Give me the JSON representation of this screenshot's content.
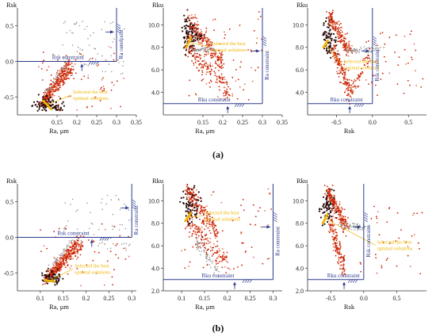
{
  "figure": {
    "panel_labels": [
      "(a)",
      "(b)"
    ],
    "colors": {
      "scatter_red": "#cc2200",
      "scatter_dark": "#2a0a0a",
      "scatter_grey": "#999999",
      "selection_yellow": "#f0b400",
      "constraint_blue": "#2c3a8c",
      "axis": "#333333"
    }
  },
  "chart_data": [
    {
      "id": "a1",
      "row": "a",
      "type": "scatter",
      "ylabel": "Rsk",
      "xlabel": "Ra, μm",
      "xlim": [
        0.05,
        0.35
      ],
      "ylim": [
        -0.75,
        0.75
      ],
      "xticks": [
        "0.15",
        "0.2",
        "0.25",
        "0.3",
        "0.35"
      ],
      "xtick_values": [
        0.15,
        0.2,
        0.25,
        0.3,
        0.35
      ],
      "yticks": [
        "0.5",
        "0.0",
        "-0.5"
      ],
      "ytick_values": [
        0.5,
        0.0,
        -0.5
      ],
      "constraints": [
        {
          "label": "Rsk constraint",
          "orientation": "horizontal",
          "value": 0.0,
          "x_end": 0.3
        },
        {
          "label": "Ra constraint",
          "orientation": "vertical",
          "value": 0.3,
          "y_end": 0.0
        }
      ],
      "annotation": {
        "text": [
          "Selected the best",
          "optimal solutions"
        ],
        "x": 0.19,
        "y": -0.45
      },
      "clusters": [
        {
          "kind": "band",
          "from": [
            0.11,
            -0.6
          ],
          "to": [
            0.18,
            -0.02
          ],
          "spread": 0.035,
          "n": 210
        },
        {
          "kind": "band",
          "from": [
            0.12,
            -0.55
          ],
          "to": [
            0.19,
            -0.1
          ],
          "spread": 0.04,
          "n": 150
        },
        {
          "kind": "blob",
          "center": [
            0.12,
            -0.6
          ],
          "spread": [
            0.012,
            0.05
          ],
          "n": 70,
          "color": "dark"
        },
        {
          "kind": "blob",
          "center": [
            0.15,
            -0.63
          ],
          "spread": [
            0.008,
            0.03
          ],
          "n": 25,
          "color": "dark"
        },
        {
          "kind": "band",
          "from": [
            0.12,
            -0.45
          ],
          "to": [
            0.17,
            -0.05
          ],
          "spread": 0.006,
          "n": 40,
          "color": "grey"
        },
        {
          "kind": "scatter",
          "xrange": [
            0.16,
            0.32
          ],
          "yrange": [
            -0.2,
            0.6
          ],
          "n": 70,
          "color": "grey"
        },
        {
          "kind": "scatter",
          "xrange": [
            0.1,
            0.32
          ],
          "yrange": [
            -0.7,
            0.2
          ],
          "n": 60
        }
      ],
      "selected": {
        "from": [
          0.115,
          -0.55
        ],
        "to": [
          0.135,
          -0.67
        ],
        "n": 12
      }
    },
    {
      "id": "a2",
      "row": "a",
      "type": "scatter",
      "ylabel": "Rku",
      "xlabel": "Ra, μm",
      "xlim": [
        0.05,
        0.35
      ],
      "ylim": [
        2.0,
        11.5
      ],
      "xticks": [
        "0.15",
        "0.2",
        "0.25",
        "0.3",
        "0.35"
      ],
      "xtick_values": [
        0.15,
        0.2,
        0.25,
        0.3,
        0.35
      ],
      "yticks": [
        "10.0",
        "8.0",
        "6.0",
        "4.0"
      ],
      "ytick_values": [
        10,
        8,
        6,
        4
      ],
      "constraints": [
        {
          "label": "Rku constraint",
          "orientation": "horizontal",
          "value": 3.0,
          "x_end": 0.3
        },
        {
          "label": "Ra constraint",
          "orientation": "vertical",
          "value": 0.3,
          "y_end": 3.0
        }
      ],
      "annotation": {
        "text": [
          "Selected the best",
          "optimal solutions"
        ],
        "x": 0.17,
        "y": 8.2
      },
      "clusters": [
        {
          "kind": "blob",
          "center": [
            0.115,
            9.0
          ],
          "spread": [
            0.01,
            0.9
          ],
          "n": 90,
          "color": "dark"
        },
        {
          "kind": "blob",
          "center": [
            0.14,
            9.0
          ],
          "spread": [
            0.006,
            0.3
          ],
          "n": 25,
          "color": "dark"
        },
        {
          "kind": "band",
          "from": [
            0.11,
            10.5
          ],
          "to": [
            0.2,
            6.5
          ],
          "spread": 0.4,
          "n": 190
        },
        {
          "kind": "band",
          "from": [
            0.11,
            8.0
          ],
          "to": [
            0.22,
            4.0
          ],
          "spread": 0.5,
          "n": 160
        },
        {
          "kind": "band",
          "from": [
            0.12,
            7.8
          ],
          "to": [
            0.18,
            7.8
          ],
          "spread": 0.1,
          "n": 60,
          "color": "grey"
        },
        {
          "kind": "scatter",
          "xrange": [
            0.1,
            0.3
          ],
          "yrange": [
            3.3,
            11.2
          ],
          "n": 70
        }
      ],
      "selected": {
        "from": [
          0.108,
          8.0
        ],
        "to": [
          0.12,
          8.9
        ],
        "n": 10
      }
    },
    {
      "id": "a3",
      "row": "a",
      "type": "scatter",
      "ylabel": "Rku",
      "xlabel": "Rsk",
      "xlim": [
        -0.9,
        0.75
      ],
      "ylim": [
        2.0,
        11.5
      ],
      "xticks": [
        "-0.5",
        "0.0",
        "0.5"
      ],
      "xtick_values": [
        -0.5,
        0.0,
        0.5
      ],
      "yticks": [
        "10.0",
        "8.0",
        "6.0",
        "4.0"
      ],
      "ytick_values": [
        10,
        8,
        6,
        4
      ],
      "constraints": [
        {
          "label": "Rku constraint",
          "orientation": "horizontal",
          "value": 3.0,
          "x_end": 0.0
        },
        {
          "label": "Rsk constraint",
          "orientation": "vertical",
          "value": 0.0,
          "y_end": 3.0
        }
      ],
      "annotation": {
        "text": [
          "Selected the best",
          "optimal solutions"
        ],
        "x": -0.4,
        "y": 6.6
      },
      "clusters": [
        {
          "kind": "blob",
          "center": [
            -0.6,
            8.8
          ],
          "spread": [
            0.05,
            0.8
          ],
          "n": 80,
          "color": "dark"
        },
        {
          "kind": "band",
          "from": [
            -0.6,
            10.8
          ],
          "to": [
            -0.3,
            7.5
          ],
          "spread": 0.35,
          "n": 200
        },
        {
          "kind": "band",
          "from": [
            -0.55,
            8.0
          ],
          "to": [
            -0.3,
            3.8
          ],
          "spread": 0.45,
          "n": 160
        },
        {
          "kind": "band",
          "from": [
            -0.3,
            3.8
          ],
          "to": [
            -0.05,
            7.2
          ],
          "spread": 0.3,
          "n": 60
        },
        {
          "kind": "band",
          "from": [
            -0.35,
            7.7
          ],
          "to": [
            0.1,
            7.8
          ],
          "spread": 0.12,
          "n": 60,
          "color": "grey"
        },
        {
          "kind": "scatter",
          "xrange": [
            -0.1,
            0.7
          ],
          "yrange": [
            3.5,
            9.5
          ],
          "n": 45
        }
      ],
      "selected": {
        "from": [
          -0.68,
          8.0
        ],
        "to": [
          -0.62,
          8.6
        ],
        "n": 10
      }
    },
    {
      "id": "b1",
      "row": "b",
      "type": "scatter",
      "ylabel": "Rsk",
      "xlabel": "Ra, μm",
      "xlim": [
        0.05,
        0.31
      ],
      "ylim": [
        -0.75,
        0.75
      ],
      "xticks": [
        "0.1",
        "0.15",
        "0.2",
        "0.25",
        "0.3"
      ],
      "xtick_values": [
        0.1,
        0.15,
        0.2,
        0.25,
        0.3
      ],
      "yticks": [
        "0.5",
        "0.0",
        "-0.5"
      ],
      "ytick_values": [
        0.5,
        0.0,
        -0.5
      ],
      "constraints": [
        {
          "label": "Rsk constraint",
          "orientation": "horizontal",
          "value": 0.0,
          "x_end": 0.3
        },
        {
          "label": "Ra constraint",
          "orientation": "vertical",
          "value": 0.3,
          "y_end": 0.0
        }
      ],
      "annotation": {
        "text": [
          "Selected the best",
          "optimal solutions"
        ],
        "x": 0.175,
        "y": -0.42
      },
      "clusters": [
        {
          "kind": "band",
          "from": [
            0.11,
            -0.62
          ],
          "to": [
            0.185,
            -0.05
          ],
          "spread": 0.035,
          "n": 230
        },
        {
          "kind": "band",
          "from": [
            0.115,
            -0.55
          ],
          "to": [
            0.19,
            -0.12
          ],
          "spread": 0.04,
          "n": 140
        },
        {
          "kind": "blob",
          "center": [
            0.125,
            -0.56
          ],
          "spread": [
            0.01,
            0.04
          ],
          "n": 70,
          "color": "dark"
        },
        {
          "kind": "band",
          "from": [
            0.12,
            -0.45
          ],
          "to": [
            0.17,
            -0.03
          ],
          "spread": 0.006,
          "n": 45,
          "color": "grey"
        },
        {
          "kind": "scatter",
          "xrange": [
            0.15,
            0.3
          ],
          "yrange": [
            -0.2,
            0.6
          ],
          "n": 60,
          "color": "grey"
        },
        {
          "kind": "scatter",
          "xrange": [
            0.1,
            0.3
          ],
          "yrange": [
            -0.7,
            0.2
          ],
          "n": 50
        }
      ],
      "selected": {
        "from": [
          0.11,
          -0.6
        ],
        "to": [
          0.13,
          -0.62
        ],
        "n": 12
      }
    },
    {
      "id": "b2",
      "row": "b",
      "type": "scatter",
      "ylabel": "Rku",
      "xlabel": "Ra, μm",
      "xlim": [
        0.06,
        0.32
      ],
      "ylim": [
        2.0,
        11.5
      ],
      "xticks": [
        "0.1",
        "0.15",
        "0.2",
        "0.25",
        "0.3"
      ],
      "xtick_values": [
        0.1,
        0.15,
        0.2,
        0.25,
        0.3
      ],
      "yticks": [
        "10.0",
        "8.0",
        "6.0",
        "4.0",
        "2.0"
      ],
      "ytick_values": [
        10,
        8,
        6,
        4,
        2
      ],
      "constraints": [
        {
          "label": "Rku constraint",
          "orientation": "horizontal",
          "value": 3.0,
          "x_end": 0.3
        },
        {
          "label": "Ra constraint",
          "orientation": "vertical",
          "value": 0.3,
          "y_end": 3.0
        }
      ],
      "annotation": {
        "text": [
          "Selected the best",
          "optimal solutions"
        ],
        "x": 0.15,
        "y": 8.8
      },
      "clusters": [
        {
          "kind": "blob",
          "center": [
            0.12,
            9.5
          ],
          "spread": [
            0.01,
            0.9
          ],
          "n": 90,
          "color": "dark"
        },
        {
          "kind": "band",
          "from": [
            0.11,
            11.0
          ],
          "to": [
            0.18,
            7.0
          ],
          "spread": 0.4,
          "n": 180
        },
        {
          "kind": "band",
          "from": [
            0.11,
            8.0
          ],
          "to": [
            0.2,
            4.5
          ],
          "spread": 0.5,
          "n": 150
        },
        {
          "kind": "band",
          "from": [
            0.13,
            6.5
          ],
          "to": [
            0.18,
            3.5
          ],
          "spread": 0.3,
          "n": 60,
          "color": "grey"
        },
        {
          "kind": "scatter",
          "xrange": [
            0.1,
            0.3
          ],
          "yrange": [
            3.3,
            11.2
          ],
          "n": 60
        }
      ],
      "selected": {
        "from": [
          0.108,
          8.2
        ],
        "to": [
          0.12,
          8.9
        ],
        "n": 10
      }
    },
    {
      "id": "b3",
      "row": "b",
      "type": "scatter",
      "ylabel": "Rku",
      "xlabel": "Rsk",
      "xlim": [
        -0.85,
        0.95
      ],
      "ylim": [
        2.0,
        11.5
      ],
      "xticks": [
        "-0.5",
        "0.0",
        "0.5"
      ],
      "xtick_values": [
        -0.5,
        0.0,
        0.5
      ],
      "yticks": [
        "10.0",
        "8.0",
        "6.0",
        "4.0",
        "2.0"
      ],
      "ytick_values": [
        10,
        8,
        6,
        4,
        2
      ],
      "constraints": [
        {
          "label": "Rku constraint",
          "orientation": "horizontal",
          "value": 3.0,
          "x_end": 0.0
        },
        {
          "label": "Rsk constraint",
          "orientation": "vertical",
          "value": 0.0,
          "y_end": 3.0
        }
      ],
      "annotation": {
        "text": [
          "Selected the best",
          "optimal solutions"
        ],
        "x": 0.2,
        "y": 6.2
      },
      "clusters": [
        {
          "kind": "blob",
          "center": [
            -0.55,
            9.3
          ],
          "spread": [
            0.05,
            0.8
          ],
          "n": 80,
          "color": "dark"
        },
        {
          "kind": "band",
          "from": [
            -0.55,
            11.0
          ],
          "to": [
            -0.25,
            7.5
          ],
          "spread": 0.35,
          "n": 200
        },
        {
          "kind": "band",
          "from": [
            -0.5,
            8.0
          ],
          "to": [
            -0.3,
            4.0
          ],
          "spread": 0.45,
          "n": 150
        },
        {
          "kind": "band",
          "from": [
            -0.35,
            7.8
          ],
          "to": [
            0.05,
            7.6
          ],
          "spread": 0.15,
          "n": 60,
          "color": "grey"
        },
        {
          "kind": "scatter",
          "xrange": [
            -0.1,
            0.9
          ],
          "yrange": [
            3.5,
            9.5
          ],
          "n": 40
        }
      ],
      "selected": {
        "from": [
          -0.62,
          8.0
        ],
        "to": [
          -0.55,
          8.8
        ],
        "n": 10
      }
    }
  ]
}
